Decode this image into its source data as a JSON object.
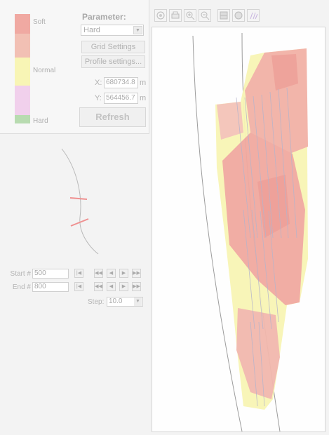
{
  "legend": {
    "soft_label": "Soft",
    "normal_label": "Normal",
    "hard_label": "Hard",
    "colors": {
      "soft": "#f0a9a2",
      "soft_mid": "#f2c0b4",
      "normal": "#f8f5b5",
      "mid_hard": "#f1d0ec",
      "hard": "#b8dbb0"
    }
  },
  "parameter": {
    "title": "Parameter:",
    "selected": "Hard"
  },
  "buttons": {
    "grid_settings": "Grid Settings",
    "profile_settings": "Profile settings...",
    "refresh": "Refresh"
  },
  "coordinates": {
    "x_label": "X:",
    "x_value": "680734.8",
    "x_unit": "m",
    "y_label": "Y:",
    "y_value": "564456.7",
    "y_unit": "m"
  },
  "toolbar": {
    "icons": [
      "zoom-extent-icon",
      "print-icon",
      "zoom-in-icon",
      "zoom-out-icon",
      "grid-view-icon",
      "layers-icon",
      "profile-lines-icon"
    ]
  },
  "navigation": {
    "start_label": "Start #",
    "start_value": "500",
    "end_label": "End #",
    "end_value": "800",
    "step_label": "Step:",
    "step_value": "10.0"
  }
}
